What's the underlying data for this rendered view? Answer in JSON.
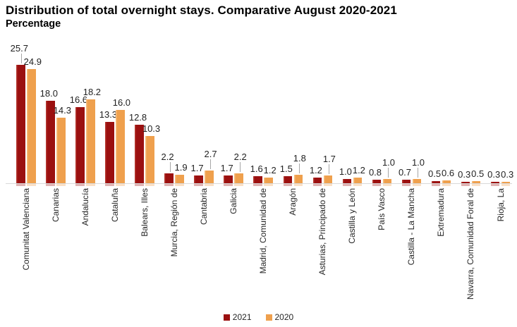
{
  "chart_data": {
    "type": "bar",
    "title": "Distribution of total overnight stays. Comparative August 2020-2021",
    "subtitle": "Percentage",
    "categories": [
      "Comunitat Valenciana",
      "Canarias",
      "Andalucía",
      "Cataluña",
      "Balears, Illes",
      "Murcia, Región de",
      "Cantabria",
      "Galicia",
      "Madrid, Comunidad de",
      "Aragón",
      "Asturias, Principado de",
      "Castilla y León",
      "País Vasco",
      "Castilla - La Mancha",
      "Extremadura",
      "Navarra, Comunidad Foral de",
      "Rioja, La"
    ],
    "series": [
      {
        "name": "2021",
        "color": "#9b1010",
        "values": [
          25.7,
          18.0,
          16.6,
          13.3,
          12.8,
          2.2,
          1.7,
          1.7,
          1.6,
          1.5,
          1.2,
          1.0,
          0.8,
          0.7,
          0.5,
          0.3,
          0.3
        ]
      },
      {
        "name": "2020",
        "color": "#efa04d",
        "values": [
          24.9,
          14.3,
          18.2,
          16.0,
          10.3,
          1.9,
          2.7,
          2.2,
          1.2,
          1.8,
          1.7,
          1.2,
          1.0,
          1.0,
          0.6,
          0.5,
          0.3
        ]
      }
    ],
    "value_label_decimals": 1,
    "ylim": [
      0,
      26
    ],
    "grid": false,
    "y_axis_shown": false,
    "legend_position": "bottom-center",
    "axis_color": "#d9d9d9",
    "leader_line_color": "#a6a6a6",
    "label_leader_lines": {
      "2021": [
        0,
        5
      ],
      "2020": [
        6,
        7,
        9,
        10,
        12,
        13
      ]
    }
  }
}
